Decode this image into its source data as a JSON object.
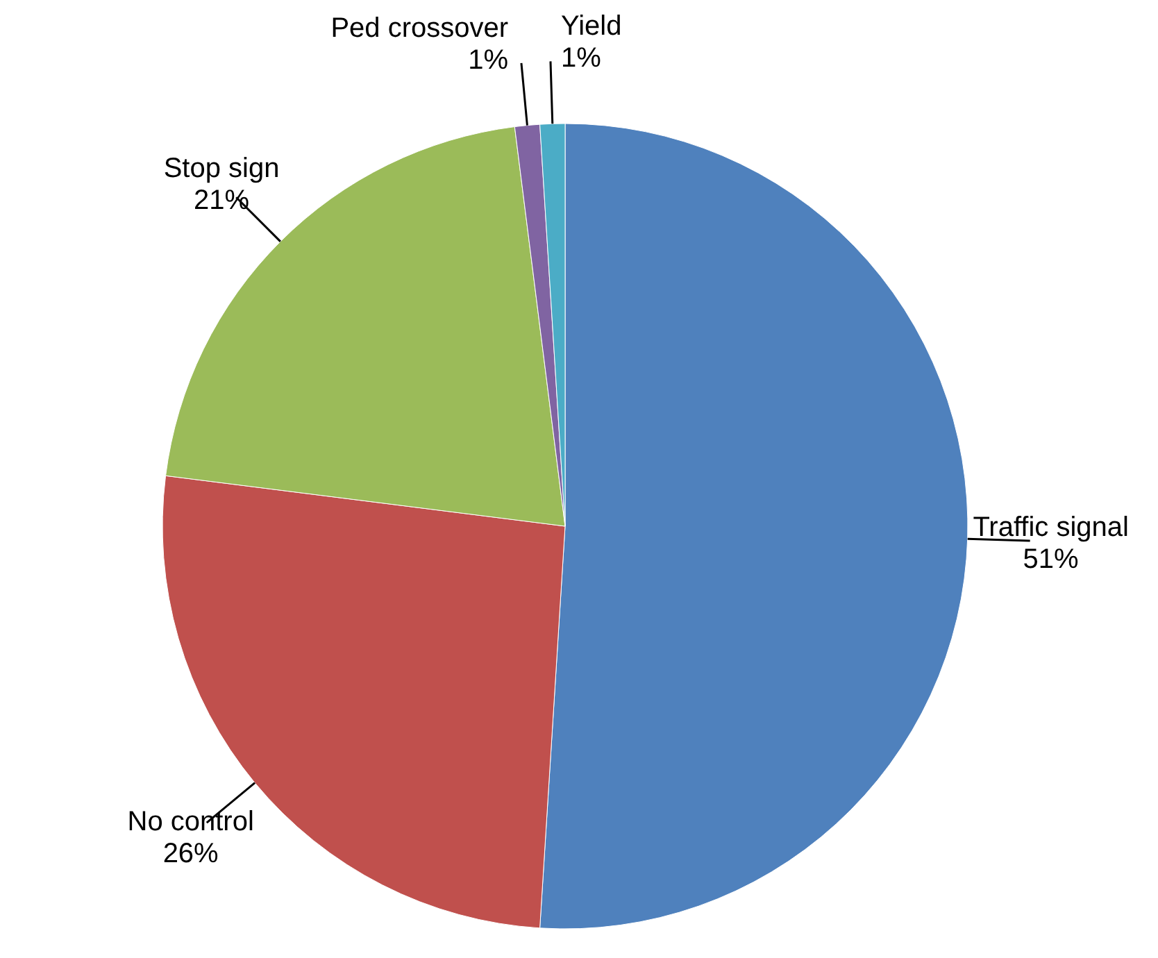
{
  "chart_data": {
    "type": "pie",
    "categories": [
      "Traffic signal",
      "No control",
      "Stop sign",
      "Ped crossover",
      "Yield"
    ],
    "values": [
      51,
      26,
      21,
      1,
      1
    ],
    "value_labels": [
      "51%",
      "26%",
      "21%",
      "1%",
      "1%"
    ],
    "colors": [
      "#4f81bd",
      "#c0504d",
      "#9bbb59",
      "#8064a2",
      "#4bacc6"
    ]
  }
}
